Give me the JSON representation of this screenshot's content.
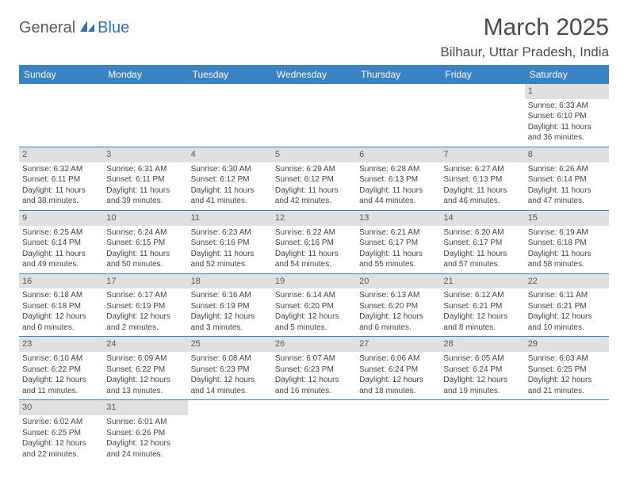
{
  "logo": {
    "part1": "General",
    "part2": "Blue"
  },
  "title": "March 2025",
  "location": "Bilhaur, Uttar Pradesh, India",
  "colors": {
    "header_bg": "#3a82c4",
    "header_text": "#ffffff",
    "daynum_bg": "#e0e0e0",
    "border": "#3a82c4",
    "logo_gray": "#5a5a5a",
    "logo_blue": "#2d6fb5"
  },
  "weekdays": [
    "Sunday",
    "Monday",
    "Tuesday",
    "Wednesday",
    "Thursday",
    "Friday",
    "Saturday"
  ],
  "weeks": [
    [
      null,
      null,
      null,
      null,
      null,
      null,
      {
        "n": "1",
        "sr": "6:33 AM",
        "ss": "6:10 PM",
        "dl": "11 hours and 36 minutes."
      }
    ],
    [
      {
        "n": "2",
        "sr": "6:32 AM",
        "ss": "6:11 PM",
        "dl": "11 hours and 38 minutes."
      },
      {
        "n": "3",
        "sr": "6:31 AM",
        "ss": "6:11 PM",
        "dl": "11 hours and 39 minutes."
      },
      {
        "n": "4",
        "sr": "6:30 AM",
        "ss": "6:12 PM",
        "dl": "11 hours and 41 minutes."
      },
      {
        "n": "5",
        "sr": "6:29 AM",
        "ss": "6:12 PM",
        "dl": "11 hours and 42 minutes."
      },
      {
        "n": "6",
        "sr": "6:28 AM",
        "ss": "6:13 PM",
        "dl": "11 hours and 44 minutes."
      },
      {
        "n": "7",
        "sr": "6:27 AM",
        "ss": "6:13 PM",
        "dl": "11 hours and 46 minutes."
      },
      {
        "n": "8",
        "sr": "6:26 AM",
        "ss": "6:14 PM",
        "dl": "11 hours and 47 minutes."
      }
    ],
    [
      {
        "n": "9",
        "sr": "6:25 AM",
        "ss": "6:14 PM",
        "dl": "11 hours and 49 minutes."
      },
      {
        "n": "10",
        "sr": "6:24 AM",
        "ss": "6:15 PM",
        "dl": "11 hours and 50 minutes."
      },
      {
        "n": "11",
        "sr": "6:23 AM",
        "ss": "6:16 PM",
        "dl": "11 hours and 52 minutes."
      },
      {
        "n": "12",
        "sr": "6:22 AM",
        "ss": "6:16 PM",
        "dl": "11 hours and 54 minutes."
      },
      {
        "n": "13",
        "sr": "6:21 AM",
        "ss": "6:17 PM",
        "dl": "11 hours and 55 minutes."
      },
      {
        "n": "14",
        "sr": "6:20 AM",
        "ss": "6:17 PM",
        "dl": "11 hours and 57 minutes."
      },
      {
        "n": "15",
        "sr": "6:19 AM",
        "ss": "6:18 PM",
        "dl": "11 hours and 58 minutes."
      }
    ],
    [
      {
        "n": "16",
        "sr": "6:18 AM",
        "ss": "6:18 PM",
        "dl": "12 hours and 0 minutes."
      },
      {
        "n": "17",
        "sr": "6:17 AM",
        "ss": "6:19 PM",
        "dl": "12 hours and 2 minutes."
      },
      {
        "n": "18",
        "sr": "6:16 AM",
        "ss": "6:19 PM",
        "dl": "12 hours and 3 minutes."
      },
      {
        "n": "19",
        "sr": "6:14 AM",
        "ss": "6:20 PM",
        "dl": "12 hours and 5 minutes."
      },
      {
        "n": "20",
        "sr": "6:13 AM",
        "ss": "6:20 PM",
        "dl": "12 hours and 6 minutes."
      },
      {
        "n": "21",
        "sr": "6:12 AM",
        "ss": "6:21 PM",
        "dl": "12 hours and 8 minutes."
      },
      {
        "n": "22",
        "sr": "6:11 AM",
        "ss": "6:21 PM",
        "dl": "12 hours and 10 minutes."
      }
    ],
    [
      {
        "n": "23",
        "sr": "6:10 AM",
        "ss": "6:22 PM",
        "dl": "12 hours and 11 minutes."
      },
      {
        "n": "24",
        "sr": "6:09 AM",
        "ss": "6:22 PM",
        "dl": "12 hours and 13 minutes."
      },
      {
        "n": "25",
        "sr": "6:08 AM",
        "ss": "6:23 PM",
        "dl": "12 hours and 14 minutes."
      },
      {
        "n": "26",
        "sr": "6:07 AM",
        "ss": "6:23 PM",
        "dl": "12 hours and 16 minutes."
      },
      {
        "n": "27",
        "sr": "6:06 AM",
        "ss": "6:24 PM",
        "dl": "12 hours and 18 minutes."
      },
      {
        "n": "28",
        "sr": "6:05 AM",
        "ss": "6:24 PM",
        "dl": "12 hours and 19 minutes."
      },
      {
        "n": "29",
        "sr": "6:03 AM",
        "ss": "6:25 PM",
        "dl": "12 hours and 21 minutes."
      }
    ],
    [
      {
        "n": "30",
        "sr": "6:02 AM",
        "ss": "6:25 PM",
        "dl": "12 hours and 22 minutes."
      },
      {
        "n": "31",
        "sr": "6:01 AM",
        "ss": "6:26 PM",
        "dl": "12 hours and 24 minutes."
      },
      null,
      null,
      null,
      null,
      null
    ]
  ],
  "labels": {
    "sunrise": "Sunrise: ",
    "sunset": "Sunset: ",
    "daylight": "Daylight: "
  }
}
